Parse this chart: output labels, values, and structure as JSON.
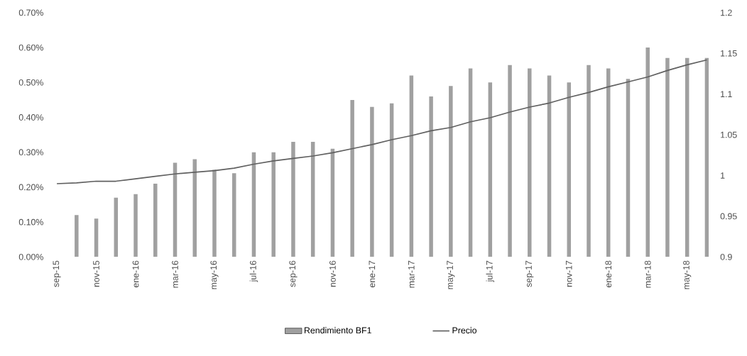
{
  "chart_data": {
    "type": "bar",
    "categories": [
      "sep-15",
      null,
      "nov-15",
      null,
      "ene-16",
      null,
      "mar-16",
      null,
      "may-16",
      null,
      "jul-16",
      null,
      "sep-16",
      null,
      "nov-16",
      null,
      "ene-17",
      null,
      "mar-17",
      null,
      "may-17",
      null,
      "jul-17",
      null,
      "sep-17",
      null,
      "nov-17",
      null,
      "ene-18",
      null,
      "mar-18",
      null,
      "may-18",
      null
    ],
    "series": [
      {
        "name": "Rendimiento BF1",
        "color": "#a0a0a0",
        "values": [
          0,
          0.12,
          0.11,
          0.17,
          0.18,
          0.21,
          0.27,
          0.28,
          0.25,
          0.24,
          0.3,
          0.3,
          0.33,
          0.33,
          0.31,
          0.45,
          0.43,
          0.44,
          0.52,
          0.46,
          0.49,
          0.54,
          0.5,
          0.55,
          0.54,
          0.52,
          0.5,
          0.55,
          0.54,
          0.51,
          0.6,
          0.57,
          0.57,
          0.57
        ]
      },
      {
        "name": "Precio",
        "type": "line",
        "axis": "y2",
        "color": "#606060",
        "values": [
          0.99,
          0.991,
          0.993,
          0.993,
          0.996,
          0.999,
          1.002,
          1.004,
          1.006,
          1.009,
          1.014,
          1.018,
          1.021,
          1.024,
          1.028,
          1.033,
          1.038,
          1.044,
          1.049,
          1.055,
          1.059,
          1.066,
          1.071,
          1.078,
          1.084,
          1.089,
          1.096,
          1.102,
          1.109,
          1.115,
          1.121,
          1.129,
          1.136,
          1.142
        ]
      }
    ],
    "ylim": [
      0,
      0.7
    ],
    "yticks": [
      {
        "value": 0,
        "label": "0.00%"
      },
      {
        "value": 0.1,
        "label": "0.10%"
      },
      {
        "value": 0.2,
        "label": "0.20%"
      },
      {
        "value": 0.3,
        "label": "0.30%"
      },
      {
        "value": 0.4,
        "label": "0.40%"
      },
      {
        "value": 0.5,
        "label": "0.50%"
      },
      {
        "value": 0.6,
        "label": "0.60%"
      },
      {
        "value": 0.7,
        "label": "0.70%"
      }
    ],
    "y2lim": [
      0.9,
      1.2
    ],
    "y2ticks": [
      0.9,
      0.95,
      1,
      1.05,
      1.1,
      1.15,
      1.2
    ],
    "legend": "bottom"
  }
}
